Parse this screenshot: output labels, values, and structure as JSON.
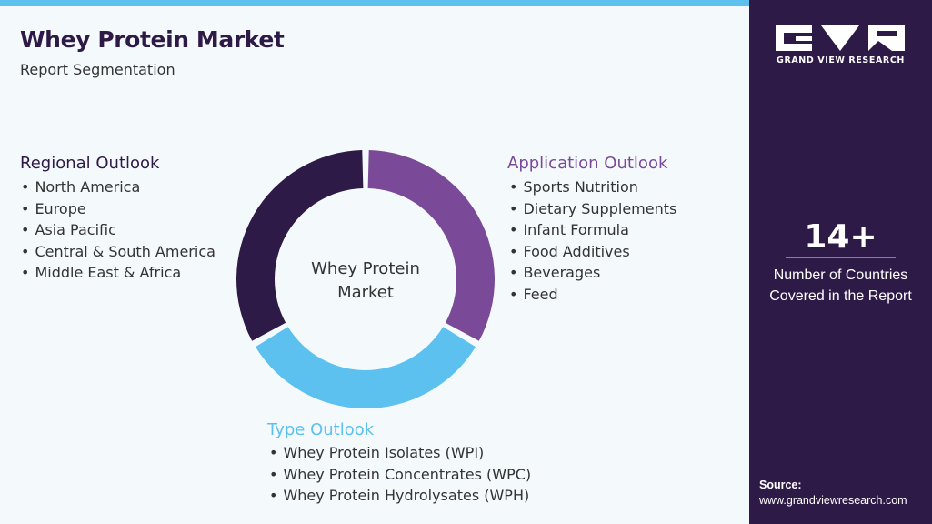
{
  "header": {
    "title": "Whey Protein Market",
    "subtitle": "Report Segmentation"
  },
  "center_label_lines": [
    "Whey Protein",
    "Market"
  ],
  "segments": {
    "regional": {
      "title": "Regional Outlook",
      "color": "#2e1a47",
      "items": [
        "North America",
        "Europe",
        "Asia Pacific",
        "Central & South America",
        "Middle East & Africa"
      ]
    },
    "application": {
      "title": "Application Outlook",
      "color": "#7a4a99",
      "items": [
        "Sports Nutrition",
        "Dietary Supplements",
        "Infant Formula",
        "Food Additives",
        "Beverages",
        "Feed"
      ]
    },
    "type": {
      "title": "Type Outlook",
      "color": "#5cc1ef",
      "items": [
        "Whey Protein Isolates (WPI)",
        "Whey Protein Concentrates (WPC)",
        "Whey Protein Hydrolysates (WPH)"
      ]
    }
  },
  "sidebar": {
    "brand": "GRAND VIEW RESEARCH",
    "stat_value": "14+",
    "stat_label_lines": [
      "Number of Countries",
      "Covered in the Report"
    ],
    "source_label": "Source:",
    "source_url": "www.grandviewresearch.com",
    "background_color": "#2e1a47"
  },
  "accent_color": "#5cc1ef"
}
